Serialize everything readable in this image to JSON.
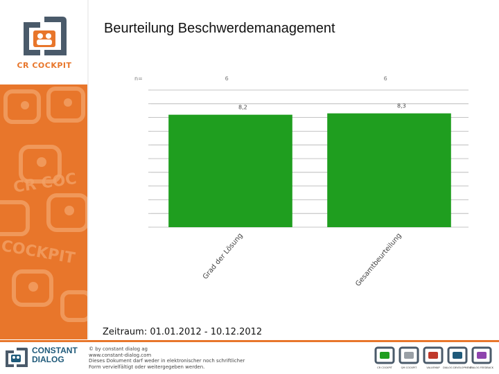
{
  "sidebar": {
    "logo_text": "CR COCKPIT"
  },
  "page": {
    "title": "Beurteilung Beschwerdemanagement",
    "period": "Zeitraum: 01.01.2012 - 10.12.2012"
  },
  "colors": {
    "orange": "#e8762b",
    "bar": "#1f9e1f",
    "grid": "#b0b0b0",
    "navy": "#1f5a7a"
  },
  "chart_data": {
    "type": "bar",
    "n_label": "n=",
    "categories": [
      "Grad der Lösung",
      "Gesamtbeurteilung"
    ],
    "n": [
      "6",
      "6"
    ],
    "values": [
      8.2,
      8.3
    ],
    "value_labels": [
      "8,2",
      "8,3"
    ],
    "ylim": [
      0,
      10
    ],
    "grid": true
  },
  "footer": {
    "brand_line1": "CONSTANT",
    "brand_line2": "DIALOG",
    "legal_lines": [
      "© by constant dialog ag",
      "www.constant-dialog.com",
      "Dieses Dokument darf weder in elektronischer noch schriftlicher",
      "Form vervielfältigt oder weitergegeben werden."
    ],
    "products": [
      "CR COCKPIT",
      "QM COCKPIT",
      "VALUEMAP",
      "DIALOG DEVELOPMENT",
      "DIALOG FEEDBACK"
    ]
  }
}
